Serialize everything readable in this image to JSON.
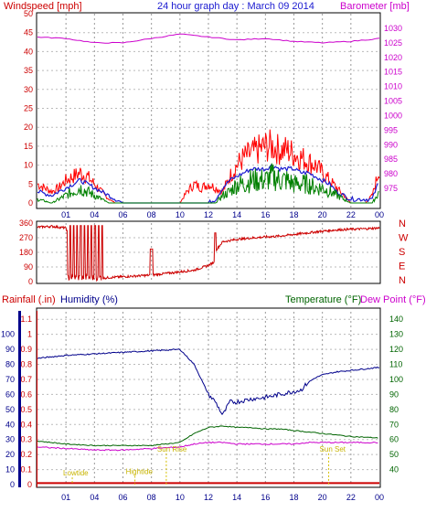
{
  "header": {
    "left_title": "Windspeed [mph]",
    "center_title": "24 hour graph day : March 09 2014",
    "right_title": "Barometer [mb]"
  },
  "chart_data": [
    {
      "type": "line",
      "title": "24 hour graph day : March 09 2014",
      "ylabel": "Windspeed [mph]",
      "y2label": "Barometer [mb]",
      "ylim": [
        0,
        50
      ],
      "y2lim": [
        970,
        1035
      ],
      "xlim": [
        0,
        24
      ],
      "x_tick_labels": [
        "01",
        "04",
        "06",
        "08",
        "10",
        "12",
        "14",
        "16",
        "18",
        "20",
        "22",
        "00"
      ],
      "yticks": [
        0,
        5,
        10,
        15,
        20,
        25,
        30,
        35,
        40,
        45,
        50
      ],
      "y2ticks": [
        975,
        980,
        985,
        990,
        995,
        1000,
        1005,
        1010,
        1015,
        1020,
        1025,
        1030
      ],
      "colors": {
        "gust": "#ff0000",
        "avg": "#1a1ad0",
        "min": "#008000",
        "baro": "#cc00cc"
      },
      "series": [
        {
          "id": "gust",
          "x": [
            0,
            0.5,
            1,
            1.5,
            2,
            2.5,
            3,
            3.5,
            4,
            4.5,
            5,
            5.5,
            6,
            6.5,
            7,
            7.5,
            8,
            8.5,
            9,
            9.5,
            10,
            10.5,
            11,
            11.5,
            12,
            12.5,
            13,
            13.5,
            14,
            14.5,
            15,
            15.5,
            16,
            16.5,
            17,
            17.5,
            18,
            18.5,
            19,
            19.5,
            20,
            20.5,
            21,
            21.5,
            22,
            22.5,
            23,
            23.5,
            24
          ],
          "values": [
            5,
            4,
            3,
            4,
            6,
            7,
            8,
            7,
            5,
            3,
            1,
            0,
            0,
            0,
            0,
            0,
            0,
            0,
            0,
            0,
            0,
            3,
            5,
            4,
            5,
            4,
            3,
            7,
            10,
            12,
            13,
            14,
            15,
            15,
            14,
            14,
            13,
            12,
            11,
            10,
            8,
            6,
            4,
            2,
            0,
            0,
            0,
            2,
            9
          ]
        },
        {
          "id": "avg",
          "x": [
            0,
            1,
            1.5,
            2,
            2.5,
            3,
            3.5,
            4,
            4.5,
            5,
            5.5,
            6,
            12,
            12.5,
            13,
            13.5,
            14,
            14.5,
            15,
            15.5,
            16,
            16.5,
            17,
            17.5,
            18,
            18.5,
            19,
            19.5,
            20,
            20.5,
            21,
            21.5,
            22,
            23.5,
            24
          ],
          "values": [
            3,
            2,
            3,
            4,
            5,
            6,
            5,
            4,
            3,
            2,
            1,
            0,
            0,
            1,
            4,
            6,
            7,
            8,
            9,
            9,
            9,
            10,
            9,
            9,
            9,
            8,
            8,
            7,
            6,
            5,
            3,
            2,
            1,
            1,
            6
          ]
        },
        {
          "id": "min",
          "x": [
            0,
            1,
            2,
            2.5,
            3,
            3.5,
            4,
            4.5,
            5,
            6,
            12,
            12.5,
            13,
            13.5,
            14,
            14.5,
            15,
            15.5,
            16,
            16.5,
            17,
            17.5,
            18,
            18.5,
            19,
            19.5,
            20,
            20.5,
            21,
            22,
            23.5,
            24
          ],
          "values": [
            1,
            0,
            2,
            3,
            4,
            3,
            2,
            1,
            0,
            0,
            0,
            0,
            2,
            3,
            5,
            5,
            6,
            6,
            6,
            7,
            6,
            6,
            5,
            5,
            5,
            4,
            4,
            3,
            2,
            0,
            0,
            3
          ]
        },
        {
          "id": "baro",
          "x": [
            0,
            2,
            4,
            6,
            8,
            10,
            12,
            14,
            16,
            18,
            20,
            22,
            24
          ],
          "values": [
            1027,
            1026.5,
            1025,
            1025,
            1026.5,
            1028,
            1027,
            1026,
            1026.5,
            1025.5,
            1025,
            1025.5,
            1026.5
          ]
        }
      ]
    },
    {
      "type": "line",
      "ylim": [
        0,
        360
      ],
      "yticks": [
        0,
        90,
        180,
        270,
        360
      ],
      "right_labels": [
        "N",
        "W",
        "S",
        "E",
        "N"
      ],
      "series": [
        {
          "id": "direction",
          "color": "#cc0000",
          "x": [
            0,
            1,
            2,
            2.5,
            3,
            3.5,
            4,
            4.5,
            5,
            6,
            7,
            8,
            8.5,
            9,
            10,
            11,
            12,
            12.4,
            12.5,
            13,
            14,
            15,
            16,
            17,
            18,
            19,
            20,
            21,
            22,
            23,
            24
          ],
          "values": [
            335,
            340,
            330,
            200,
            120,
            40,
            30,
            20,
            25,
            30,
            35,
            40,
            45,
            50,
            60,
            70,
            100,
            120,
            190,
            245,
            260,
            268,
            275,
            280,
            290,
            300,
            310,
            318,
            322,
            325,
            330
          ]
        }
      ]
    },
    {
      "type": "line",
      "ylabel_left": "Rainfall (.in)",
      "ylabel_left2": "Humidity (%)",
      "ylabel_right": "Temperature (°F)",
      "ylabel_right2": "Dew Point (°F)",
      "ylim": [
        0,
        1.15
      ],
      "yticks": [
        0,
        0.1,
        0.2,
        0.3,
        0.4,
        0.5,
        0.6,
        0.7,
        0.8,
        0.9,
        1,
        1.1
      ],
      "yticks2": [
        0,
        10,
        20,
        30,
        40,
        50,
        60,
        70,
        80,
        90,
        100
      ],
      "y2lim": [
        30,
        145
      ],
      "y2ticks": [
        40,
        50,
        60,
        70,
        80,
        90,
        100,
        110,
        120,
        130,
        140
      ],
      "x_tick_labels": [
        "01",
        "04",
        "06",
        "08",
        "10",
        "12",
        "14",
        "16",
        "18",
        "20",
        "22",
        "00"
      ],
      "annotations": [
        {
          "text": "Lowtide",
          "x": 1.8,
          "y": 0.06
        },
        {
          "text": "Hightide",
          "x": 6.2,
          "y": 0.07
        },
        {
          "text": "Sun Rise",
          "x": 8.4,
          "y": 0.22
        },
        {
          "text": "Sun Set",
          "x": 19.8,
          "y": 0.22
        }
      ],
      "series": [
        {
          "id": "humidity",
          "color": "#00008b",
          "axis": "left2",
          "x": [
            0,
            1,
            2,
            4,
            6,
            8,
            10,
            11,
            11.5,
            12,
            12.5,
            13,
            13.5,
            14,
            15,
            16,
            17,
            18,
            18.5,
            19,
            19.5,
            20,
            21,
            22,
            24
          ],
          "values": [
            84,
            85,
            86,
            87,
            88,
            89,
            90,
            80,
            70,
            60,
            55,
            46,
            55,
            55,
            57,
            58,
            60,
            62,
            63,
            68,
            71,
            73,
            75,
            76,
            78
          ]
        },
        {
          "id": "temperature",
          "color": "#006400",
          "axis": "right",
          "x": [
            0,
            2,
            4,
            6,
            8,
            10,
            11,
            12,
            13,
            14,
            15,
            16,
            17,
            18,
            19,
            20,
            21,
            22,
            24
          ],
          "values": [
            59,
            57,
            56,
            56,
            56,
            58,
            64,
            68,
            69,
            68,
            68,
            67,
            67,
            66,
            65,
            64,
            63,
            62,
            61
          ]
        },
        {
          "id": "dewpoint",
          "color": "#cc00cc",
          "axis": "right",
          "x": [
            0,
            2,
            4,
            6,
            8,
            10,
            11,
            12,
            13,
            14,
            15,
            16,
            17,
            18,
            19,
            20,
            21,
            22,
            24
          ],
          "values": [
            55,
            54,
            53,
            53,
            54,
            55,
            57,
            58,
            58,
            57,
            57,
            57,
            57,
            57,
            58,
            58,
            58,
            58,
            58
          ]
        },
        {
          "id": "rain",
          "color": "#cc0000",
          "axis": "left",
          "x": [
            0,
            24
          ],
          "values": [
            0.01,
            0.01
          ]
        }
      ]
    }
  ],
  "labels": {
    "p3_left1": "Rainfall (.in)",
    "p3_left2": "Humidity (%)",
    "p3_right1": "Temperature (°F)",
    "p3_right2": "Dew Point (°F)"
  }
}
